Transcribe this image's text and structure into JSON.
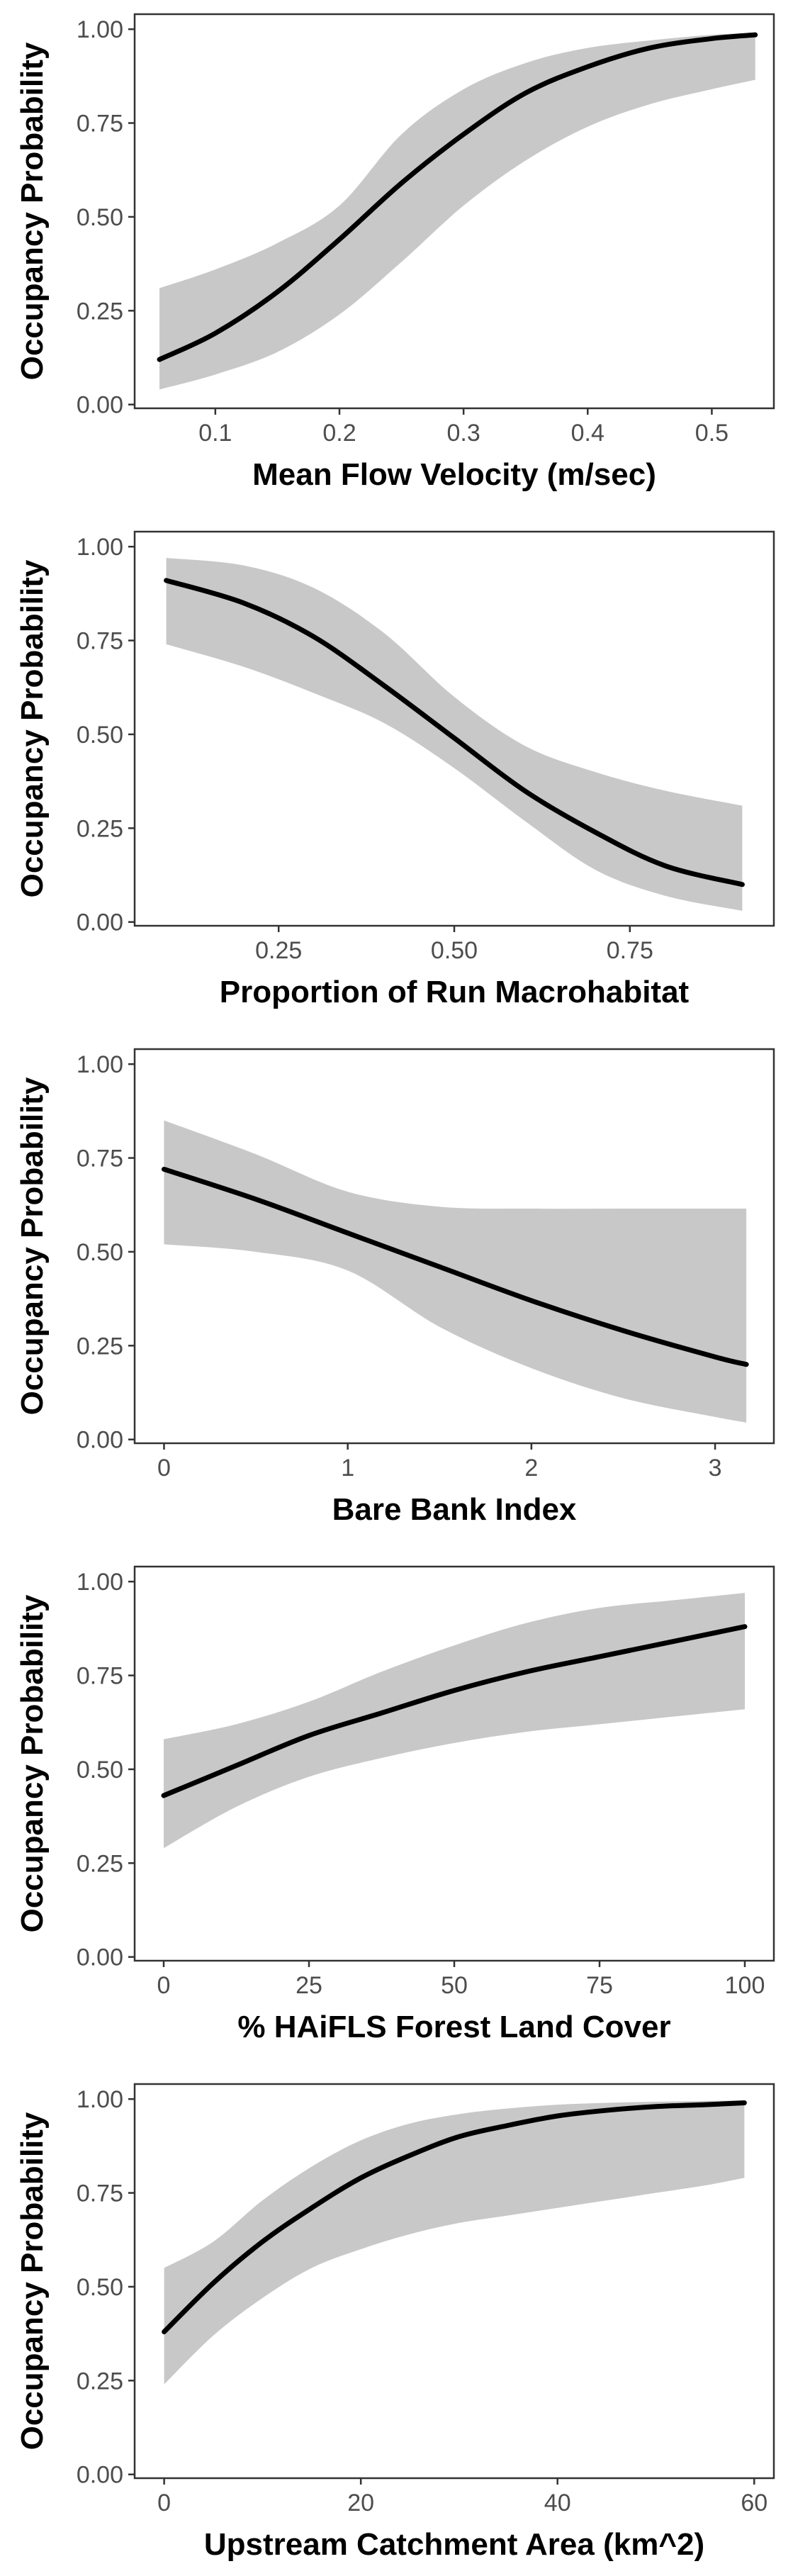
{
  "colors": {
    "band": "#c8c8c8",
    "line": "#000000",
    "frame": "#333333",
    "tick_text": "#4d4d4d",
    "background": "#ffffff"
  },
  "chart_data": [
    {
      "type": "line",
      "xlabel": "Mean Flow Velocity (m/sec)",
      "ylabel": "Occupancy Probability",
      "xlim": [
        0.035,
        0.55
      ],
      "ylim": [
        -0.01,
        1.04
      ],
      "xticks": [
        {
          "value": 0.1,
          "label": "0.1"
        },
        {
          "value": 0.2,
          "label": "0.2"
        },
        {
          "value": 0.3,
          "label": "0.3"
        },
        {
          "value": 0.4,
          "label": "0.4"
        },
        {
          "value": 0.5,
          "label": "0.5"
        }
      ],
      "yticks": [
        {
          "value": 0.0,
          "label": "0.00"
        },
        {
          "value": 0.25,
          "label": "0.25"
        },
        {
          "value": 0.5,
          "label": "0.50"
        },
        {
          "value": 0.75,
          "label": "0.75"
        },
        {
          "value": 1.0,
          "label": "1.00"
        }
      ],
      "x": [
        0.055,
        0.1,
        0.15,
        0.2,
        0.25,
        0.3,
        0.35,
        0.4,
        0.45,
        0.5,
        0.535
      ],
      "fit": [
        0.12,
        0.19,
        0.3,
        0.44,
        0.59,
        0.72,
        0.83,
        0.9,
        0.95,
        0.975,
        0.985
      ],
      "lower": [
        0.04,
        0.08,
        0.14,
        0.24,
        0.38,
        0.53,
        0.65,
        0.74,
        0.8,
        0.84,
        0.865
      ],
      "upper": [
        0.31,
        0.36,
        0.43,
        0.53,
        0.72,
        0.84,
        0.91,
        0.95,
        0.97,
        0.985,
        0.99
      ],
      "grid": false
    },
    {
      "type": "line",
      "xlabel": "Proportion of Run Macrohabitat",
      "ylabel": "Occupancy Probability",
      "xlim": [
        0.045,
        0.955
      ],
      "ylim": [
        -0.01,
        1.04
      ],
      "xticks": [
        {
          "value": 0.25,
          "label": "0.25"
        },
        {
          "value": 0.5,
          "label": "0.50"
        },
        {
          "value": 0.75,
          "label": "0.75"
        }
      ],
      "yticks": [
        {
          "value": 0.0,
          "label": "0.00"
        },
        {
          "value": 0.25,
          "label": "0.25"
        },
        {
          "value": 0.5,
          "label": "0.50"
        },
        {
          "value": 0.75,
          "label": "0.75"
        },
        {
          "value": 1.0,
          "label": "1.00"
        }
      ],
      "x": [
        0.09,
        0.2,
        0.3,
        0.4,
        0.5,
        0.6,
        0.7,
        0.8,
        0.91
      ],
      "fit": [
        0.91,
        0.85,
        0.76,
        0.63,
        0.49,
        0.35,
        0.24,
        0.15,
        0.1
      ],
      "lower": [
        0.74,
        0.68,
        0.61,
        0.53,
        0.41,
        0.27,
        0.14,
        0.07,
        0.03
      ],
      "upper": [
        0.97,
        0.95,
        0.89,
        0.77,
        0.6,
        0.47,
        0.4,
        0.35,
        0.31
      ],
      "grid": false
    },
    {
      "type": "line",
      "xlabel": "Bare Bank Index",
      "ylabel": "Occupancy Probability",
      "xlim": [
        -0.16,
        3.32
      ],
      "ylim": [
        -0.01,
        1.04
      ],
      "xticks": [
        {
          "value": 0,
          "label": "0"
        },
        {
          "value": 1,
          "label": "1"
        },
        {
          "value": 2,
          "label": "2"
        },
        {
          "value": 3,
          "label": "3"
        }
      ],
      "yticks": [
        {
          "value": 0.0,
          "label": "0.00"
        },
        {
          "value": 0.25,
          "label": "0.25"
        },
        {
          "value": 0.5,
          "label": "0.50"
        },
        {
          "value": 0.75,
          "label": "0.75"
        },
        {
          "value": 1.0,
          "label": "1.00"
        }
      ],
      "x": [
        0,
        0.5,
        1.0,
        1.5,
        2.0,
        2.5,
        3.0,
        3.17
      ],
      "fit": [
        0.72,
        0.64,
        0.55,
        0.46,
        0.37,
        0.29,
        0.22,
        0.2
      ],
      "lower": [
        0.52,
        0.5,
        0.45,
        0.3,
        0.19,
        0.11,
        0.06,
        0.045
      ],
      "upper": [
        0.85,
        0.76,
        0.66,
        0.62,
        0.615,
        0.615,
        0.615,
        0.615
      ],
      "grid": false
    },
    {
      "type": "line",
      "xlabel": "% HAiFLS Forest Land Cover",
      "ylabel": "Occupancy Probability",
      "xlim": [
        -5,
        105
      ],
      "ylim": [
        -0.01,
        1.04
      ],
      "xticks": [
        {
          "value": 0,
          "label": "0"
        },
        {
          "value": 25,
          "label": "25"
        },
        {
          "value": 50,
          "label": "50"
        },
        {
          "value": 75,
          "label": "75"
        },
        {
          "value": 100,
          "label": "100"
        }
      ],
      "yticks": [
        {
          "value": 0.0,
          "label": "0.00"
        },
        {
          "value": 0.25,
          "label": "0.25"
        },
        {
          "value": 0.5,
          "label": "0.50"
        },
        {
          "value": 0.75,
          "label": "0.75"
        },
        {
          "value": 1.0,
          "label": "1.00"
        }
      ],
      "x": [
        0,
        12.5,
        25,
        37.5,
        50,
        62.5,
        75,
        87.5,
        100
      ],
      "fit": [
        0.43,
        0.51,
        0.59,
        0.65,
        0.71,
        0.76,
        0.8,
        0.84,
        0.88
      ],
      "lower": [
        0.29,
        0.4,
        0.48,
        0.53,
        0.57,
        0.6,
        0.62,
        0.64,
        0.66
      ],
      "upper": [
        0.58,
        0.62,
        0.68,
        0.76,
        0.83,
        0.89,
        0.93,
        0.95,
        0.97
      ],
      "grid": false
    },
    {
      "type": "line",
      "xlabel": "Upstream Catchment Area (km^2)",
      "ylabel": "Occupancy Probability",
      "xlim": [
        -3,
        62
      ],
      "ylim": [
        -0.01,
        1.04
      ],
      "xticks": [
        {
          "value": 0,
          "label": "0"
        },
        {
          "value": 20,
          "label": "20"
        },
        {
          "value": 40,
          "label": "40"
        },
        {
          "value": 60,
          "label": "60"
        }
      ],
      "yticks": [
        {
          "value": 0.0,
          "label": "0.00"
        },
        {
          "value": 0.25,
          "label": "0.25"
        },
        {
          "value": 0.5,
          "label": "0.50"
        },
        {
          "value": 0.75,
          "label": "0.75"
        },
        {
          "value": 1.0,
          "label": "1.00"
        }
      ],
      "x": [
        0,
        5,
        10,
        15,
        20,
        25,
        30,
        35,
        40,
        45,
        50,
        55,
        59
      ],
      "fit": [
        0.38,
        0.51,
        0.62,
        0.71,
        0.79,
        0.85,
        0.9,
        0.93,
        0.955,
        0.97,
        0.98,
        0.985,
        0.99
      ],
      "lower": [
        0.24,
        0.37,
        0.47,
        0.55,
        0.6,
        0.64,
        0.67,
        0.69,
        0.71,
        0.73,
        0.75,
        0.77,
        0.79
      ],
      "upper": [
        0.55,
        0.62,
        0.73,
        0.82,
        0.89,
        0.935,
        0.96,
        0.975,
        0.985,
        0.99,
        0.993,
        0.995,
        0.996
      ],
      "grid": false
    }
  ]
}
